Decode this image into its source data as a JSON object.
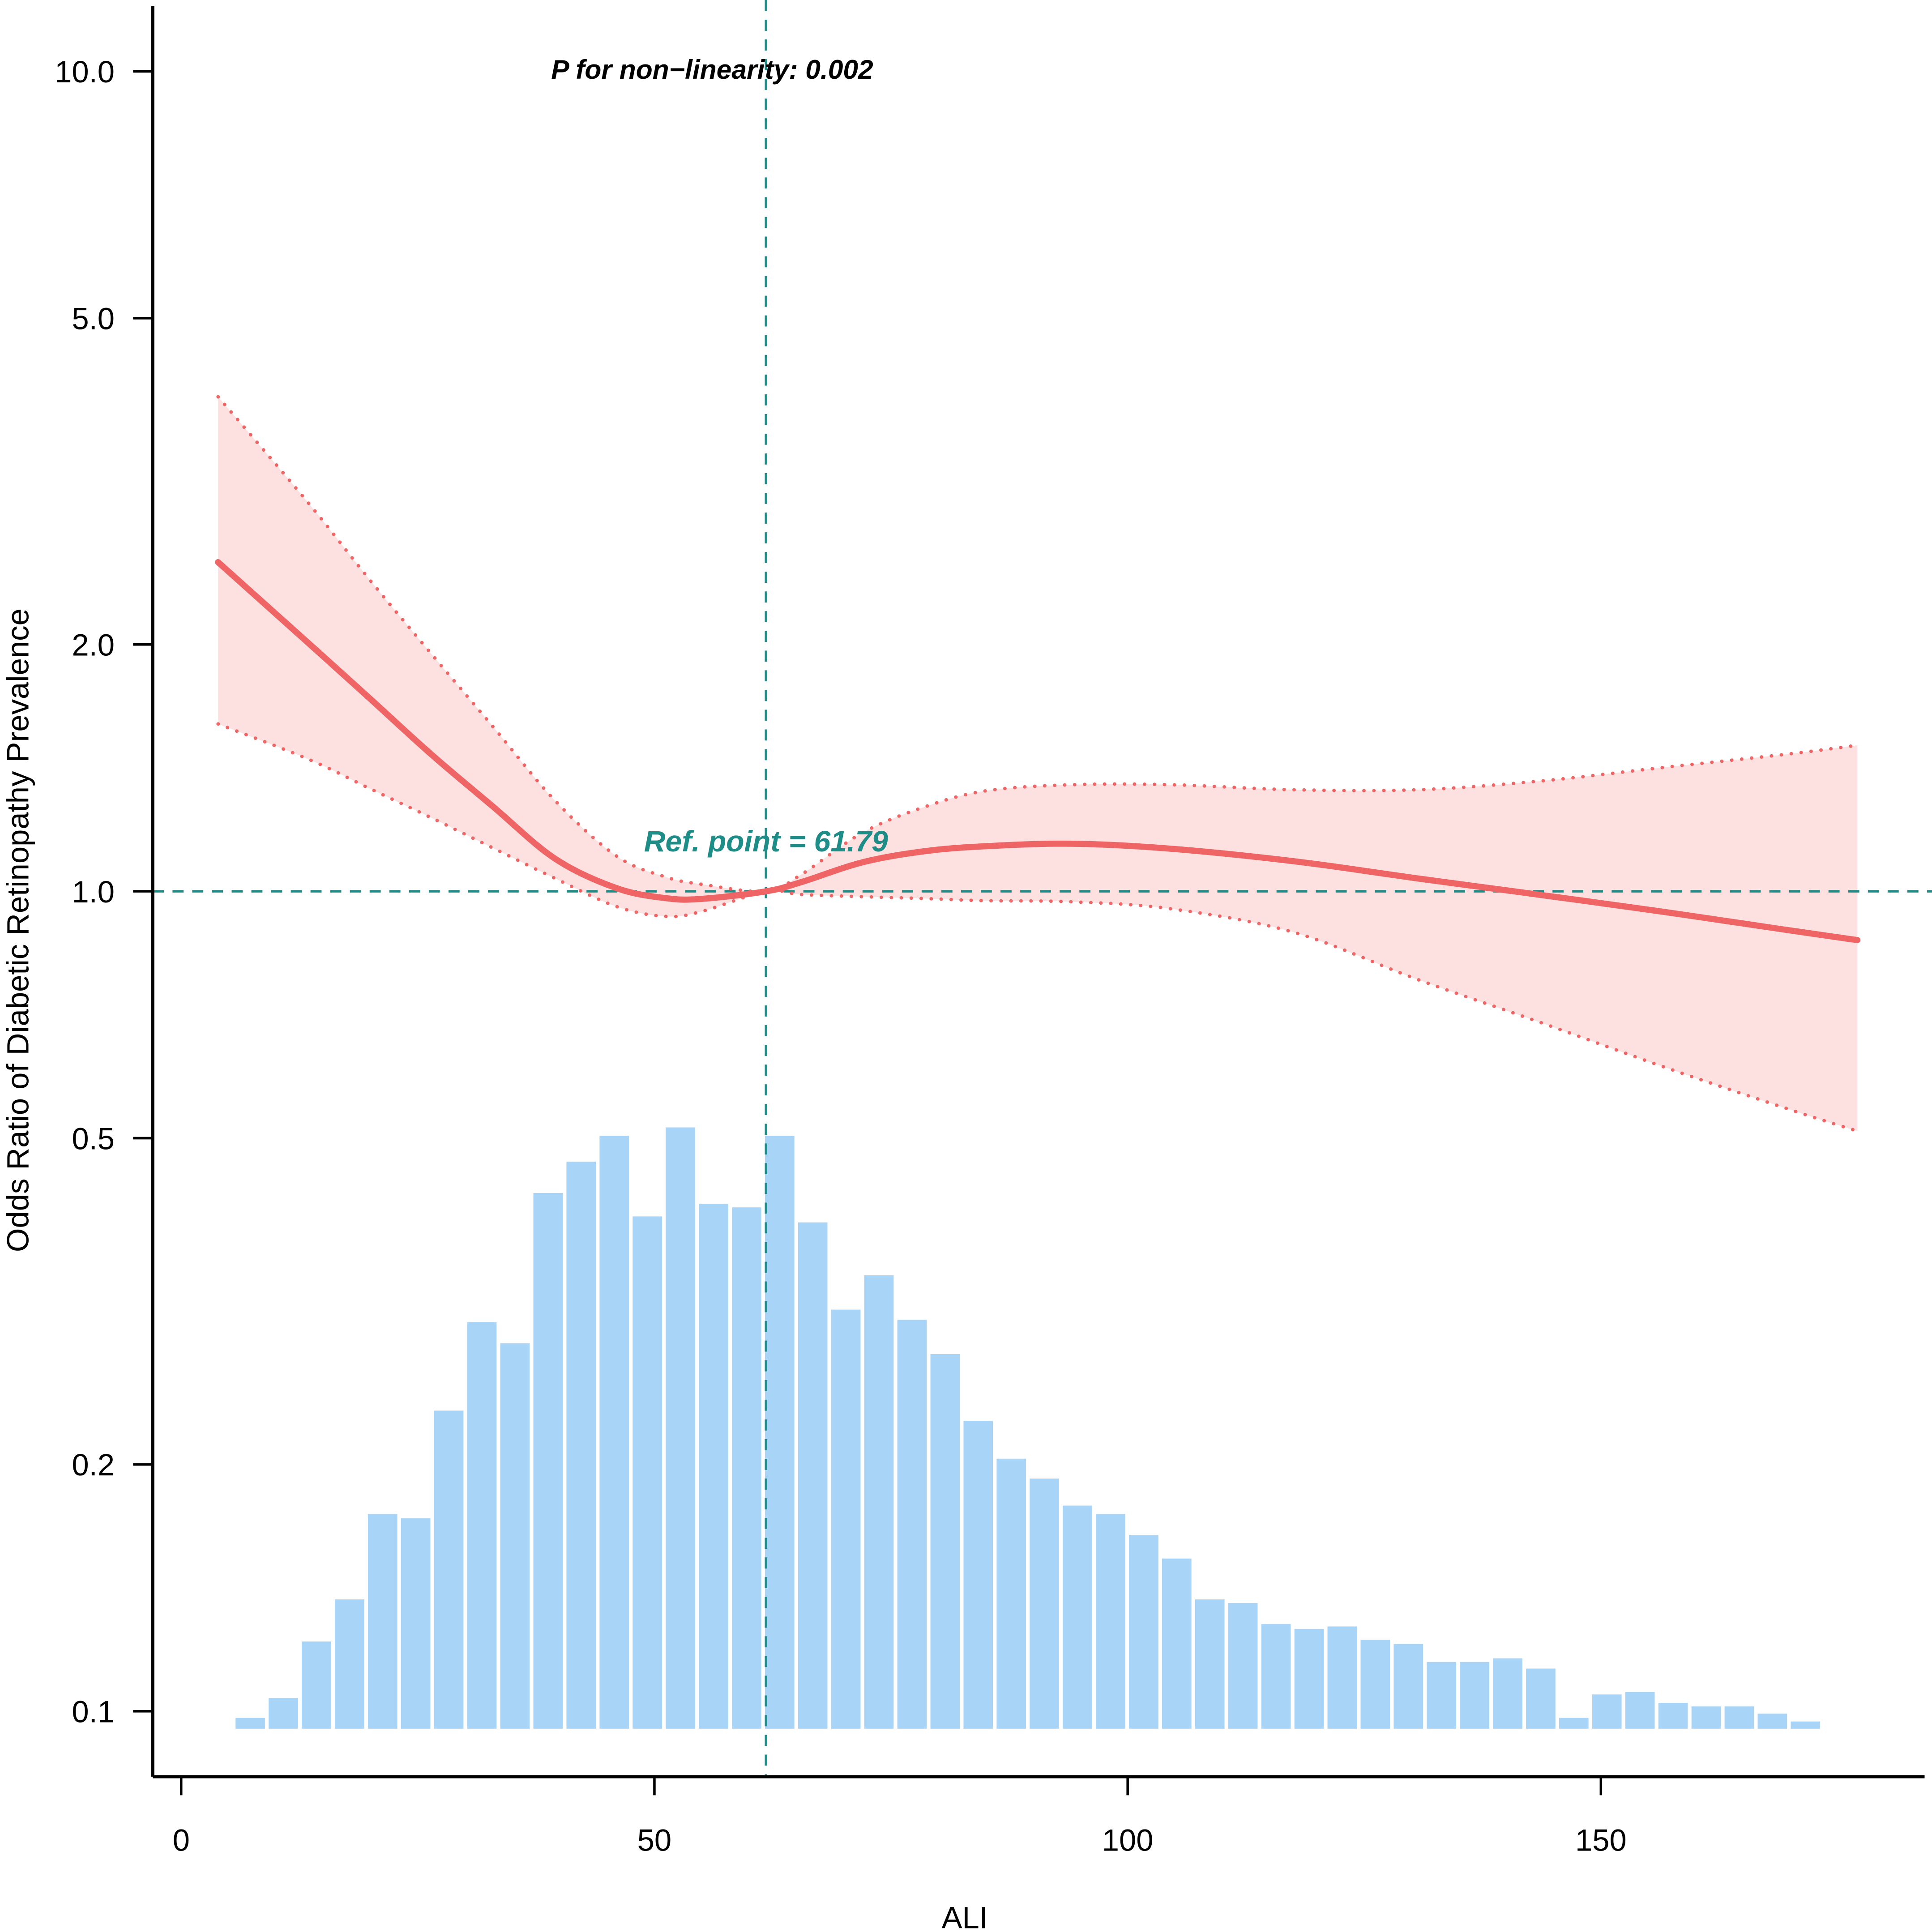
{
  "chart_data": {
    "type": "line",
    "title": "",
    "xlabel": "ALI",
    "ylabel": "Odds Ratio of Diabetic Retinopathy Prevalence",
    "grid": false,
    "x_axis": {
      "range": [
        -3.0,
        184.2
      ],
      "ticks": [
        0,
        50,
        100,
        150
      ],
      "tick_labels": [
        "0",
        "50",
        "100",
        "150"
      ]
    },
    "y_axis": {
      "log": true,
      "range": [
        0.0832,
        12.01
      ],
      "ticks": [
        10,
        5,
        2,
        1,
        0.5,
        0.2,
        0.1
      ],
      "tick_labels": [
        "10.0",
        "5.0",
        "2.0",
        "1.0",
        "0.5",
        "0.2",
        "0.1"
      ]
    },
    "curve": {
      "x": [
        3.9,
        13.4,
        19.9,
        26.4,
        32.9,
        39.5,
        46.0,
        51.2,
        55.0,
        61.79,
        65.5,
        72.0,
        78.5,
        85.0,
        94.1,
        104.6,
        117.6,
        130.6,
        143.6,
        156.6,
        169.7,
        177.1
      ],
      "or": [
        2.52,
        2.01,
        1.72,
        1.47,
        1.27,
        1.096,
        1.009,
        0.981,
        0.979,
        1.0,
        1.026,
        1.085,
        1.119,
        1.135,
        1.143,
        1.127,
        1.088,
        1.037,
        0.99,
        0.944,
        0.897,
        0.872
      ],
      "ci_lower": [
        1.6,
        1.45,
        1.335,
        1.23,
        1.13,
        1.037,
        0.958,
        0.932,
        0.945,
        1.0,
        0.991,
        0.985,
        0.98,
        0.974,
        0.971,
        0.952,
        0.891,
        0.781,
        0.692,
        0.611,
        0.543,
        0.51
      ],
      "ci_upper": [
        4.01,
        2.98,
        2.4,
        1.95,
        1.59,
        1.29,
        1.104,
        1.041,
        1.02,
        1.0,
        1.048,
        1.179,
        1.267,
        1.326,
        1.349,
        1.349,
        1.33,
        1.33,
        1.363,
        1.416,
        1.47,
        1.507
      ]
    },
    "reference": {
      "x": 61.79,
      "y": 1.0
    },
    "annotations": {
      "p_nonlinearity": "P for non−linearity: 0.002",
      "ref_point": "Ref. point = 61.79"
    },
    "histogram": {
      "bin_start": 5.55,
      "bin_width": 3.496,
      "relative_heights_pct": [
        1.8,
        5.1,
        14.5,
        21.5,
        35.7,
        35.0,
        52.9,
        67.6,
        64.1,
        89.1,
        94.3,
        98.6,
        85.2,
        100,
        87.3,
        86.7,
        98.6,
        84.2,
        69.7,
        75.4,
        68.0,
        62.3,
        51.2,
        44.9,
        41.6,
        37.1,
        35.7,
        32.2,
        28.3,
        21.5,
        20.9,
        17.4,
        16.6,
        17.0,
        14.8,
        14.1,
        11.1,
        11.1,
        11.7,
        10.0,
        1.8,
        5.7,
        6.1,
        4.3,
        3.7,
        3.7,
        2.5,
        1.2
      ]
    },
    "colors": {
      "curve": "#ef6565",
      "ci_fill": "#fde1e1",
      "reference": "#1e8c87",
      "histogram": "#a8d4f7",
      "axis": "#000000"
    }
  }
}
